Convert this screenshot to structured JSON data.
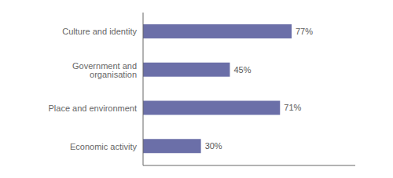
{
  "chart_data": {
    "type": "bar",
    "orientation": "horizontal",
    "categories": [
      "Culture and identity",
      "Government and organisation",
      "Place and environment",
      "Economic activity"
    ],
    "values": [
      77,
      45,
      71,
      30
    ],
    "value_labels": [
      "77%",
      "45%",
      "71%",
      "30%"
    ],
    "color": "#6b6fa8",
    "xlim": [
      0,
      110
    ],
    "data_labels": true,
    "tick_labels": "y",
    "grid": false
  }
}
